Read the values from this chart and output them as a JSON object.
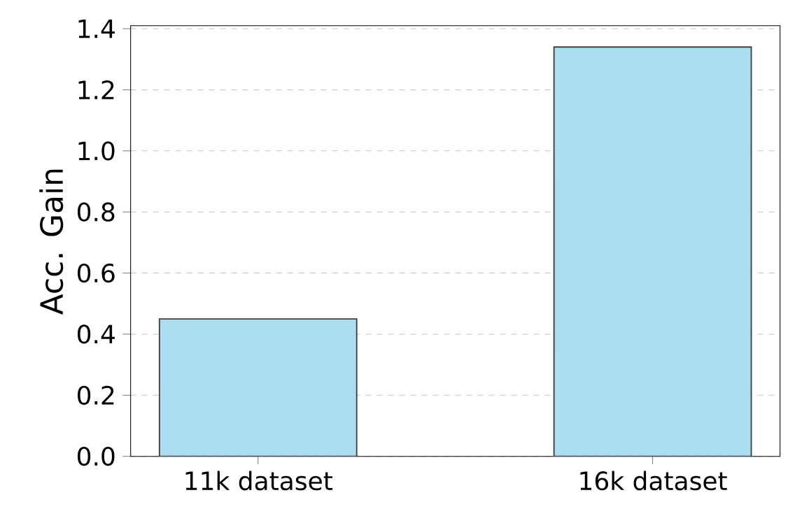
{
  "chart_data": {
    "type": "bar",
    "ylabel": "Acc. Gain",
    "categories": [
      "11k dataset",
      "16k dataset"
    ],
    "values": [
      0.45,
      1.34
    ],
    "color": "#abddf1",
    "ylim": [
      0,
      1.41
    ],
    "yticks": [
      {
        "value": 0,
        "label": "0.0"
      },
      0.2,
      0.4,
      0.6,
      0.8,
      {
        "value": 1,
        "label": "1.0"
      },
      1.2,
      1.4
    ],
    "grid": "y"
  }
}
